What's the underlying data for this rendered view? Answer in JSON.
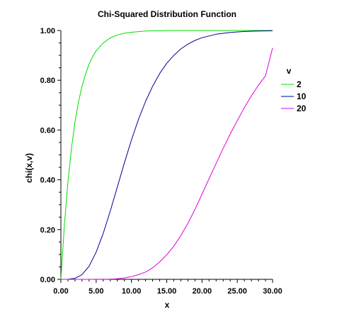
{
  "chart_data": {
    "type": "line",
    "title": "Chi-Squared Distribution Function",
    "xlabel": "x",
    "ylabel": "chi(x,v)",
    "xlim": [
      0,
      30
    ],
    "ylim": [
      0,
      1
    ],
    "x_ticks": [
      "0.00",
      "5.00",
      "10.00",
      "15.00",
      "20.00",
      "25.00",
      "30.00"
    ],
    "y_ticks": [
      "0.00",
      "0.20",
      "0.40",
      "0.60",
      "0.80",
      "1.00"
    ],
    "grid": false,
    "legend": {
      "title": "v",
      "placement": "right"
    },
    "series": [
      {
        "name": "2",
        "color": "#00dd00",
        "x": [
          0,
          0.5,
          1,
          1.5,
          2,
          2.5,
          3,
          3.5,
          4,
          4.5,
          5,
          6,
          7,
          8,
          9,
          10,
          12,
          14,
          16,
          18,
          20,
          22,
          24,
          26,
          28,
          30
        ],
        "y": [
          0,
          0.221,
          0.393,
          0.528,
          0.632,
          0.713,
          0.777,
          0.826,
          0.865,
          0.895,
          0.918,
          0.95,
          0.97,
          0.982,
          0.989,
          0.993,
          0.998,
          0.999,
          1.0,
          1.0,
          1.0,
          1.0,
          1.0,
          1.0,
          1.0,
          1.0
        ]
      },
      {
        "name": "10",
        "color": "#000099",
        "x": [
          0,
          1,
          2,
          3,
          4,
          5,
          6,
          7,
          8,
          9,
          10,
          11,
          12,
          13,
          14,
          15,
          16,
          17,
          18,
          19,
          20,
          22,
          24,
          26,
          28,
          30
        ],
        "y": [
          0,
          0.0002,
          0.004,
          0.019,
          0.053,
          0.109,
          0.185,
          0.275,
          0.371,
          0.468,
          0.56,
          0.643,
          0.715,
          0.776,
          0.827,
          0.868,
          0.9,
          0.926,
          0.945,
          0.96,
          0.971,
          0.985,
          0.992,
          0.996,
          0.998,
          0.999
        ]
      },
      {
        "name": "20",
        "color": "#dd00dd",
        "x": [
          0,
          2,
          4,
          6,
          7,
          8,
          9,
          10,
          11,
          12,
          13,
          14,
          15,
          16,
          17,
          18,
          19,
          20,
          21,
          22,
          23,
          24,
          25,
          26,
          27,
          28,
          29,
          30
        ],
        "y": [
          0,
          0.0,
          1e-05,
          0.0003,
          0.0009,
          0.0024,
          0.0056,
          0.0108,
          0.0187,
          0.0293,
          0.0463,
          0.0699,
          0.0985,
          0.1334,
          0.1759,
          0.2252,
          0.2808,
          0.342,
          0.4045,
          0.466,
          0.5262,
          0.584,
          0.638,
          0.6903,
          0.7372,
          0.7802,
          0.818,
          0.93
        ]
      }
    ]
  }
}
